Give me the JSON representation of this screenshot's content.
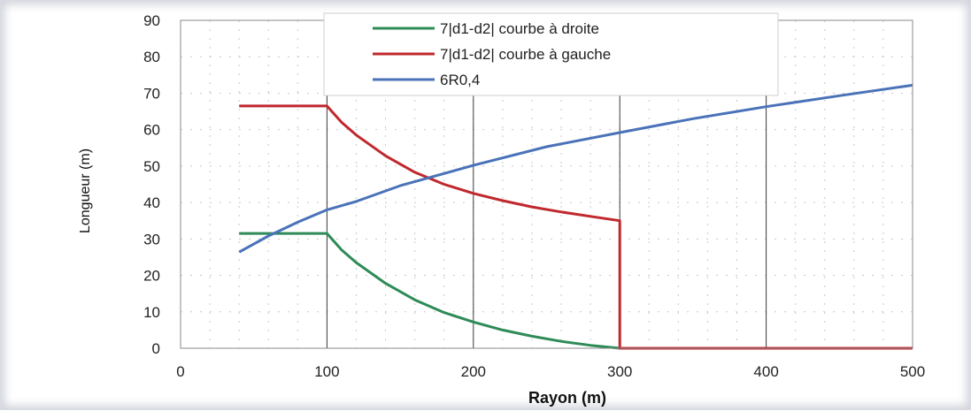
{
  "chart_data": {
    "type": "line",
    "xlabel": "Rayon (m)",
    "ylabel": "Longueur (m)",
    "xlim": [
      0,
      500
    ],
    "ylim": [
      0,
      90
    ],
    "xticks": [
      "0",
      "100",
      "200",
      "300",
      "400",
      "500"
    ],
    "yticks": [
      "0",
      "10",
      "20",
      "30",
      "40",
      "50",
      "60",
      "70",
      "80",
      "90"
    ],
    "grid": "major vertical lines every 100, minor dashed grid",
    "legend_position": "top-center",
    "series": [
      {
        "name": "7|d1-d2| courbe à droite",
        "color": "#2e8b57",
        "x": [
          40,
          100,
          110,
          120,
          140,
          160,
          180,
          200,
          220,
          240,
          260,
          280,
          300,
          500
        ],
        "y": [
          31.5,
          31.5,
          27,
          23.5,
          17.8,
          13.3,
          9.8,
          7.2,
          5,
          3.3,
          1.9,
          0.8,
          0,
          0
        ]
      },
      {
        "name": "7|d1-d2| courbe à gauche",
        "color": "#c0282d",
        "x": [
          40,
          100,
          110,
          120,
          140,
          160,
          180,
          200,
          220,
          240,
          260,
          280,
          300,
          300,
          500
        ],
        "y": [
          66.5,
          66.5,
          62,
          58.5,
          52.8,
          48.3,
          45,
          42.5,
          40.5,
          38.8,
          37.4,
          36.2,
          35,
          0,
          0
        ]
      },
      {
        "name": "6R0,4",
        "color": "#4a72b8",
        "x": [
          40,
          60,
          80,
          100,
          120,
          150,
          200,
          250,
          300,
          350,
          400,
          450,
          500
        ],
        "y": [
          26.4,
          30.8,
          34.6,
          38,
          40.3,
          44.6,
          50.2,
          55.3,
          59.2,
          63,
          66.3,
          69.3,
          72.2
        ]
      }
    ]
  }
}
